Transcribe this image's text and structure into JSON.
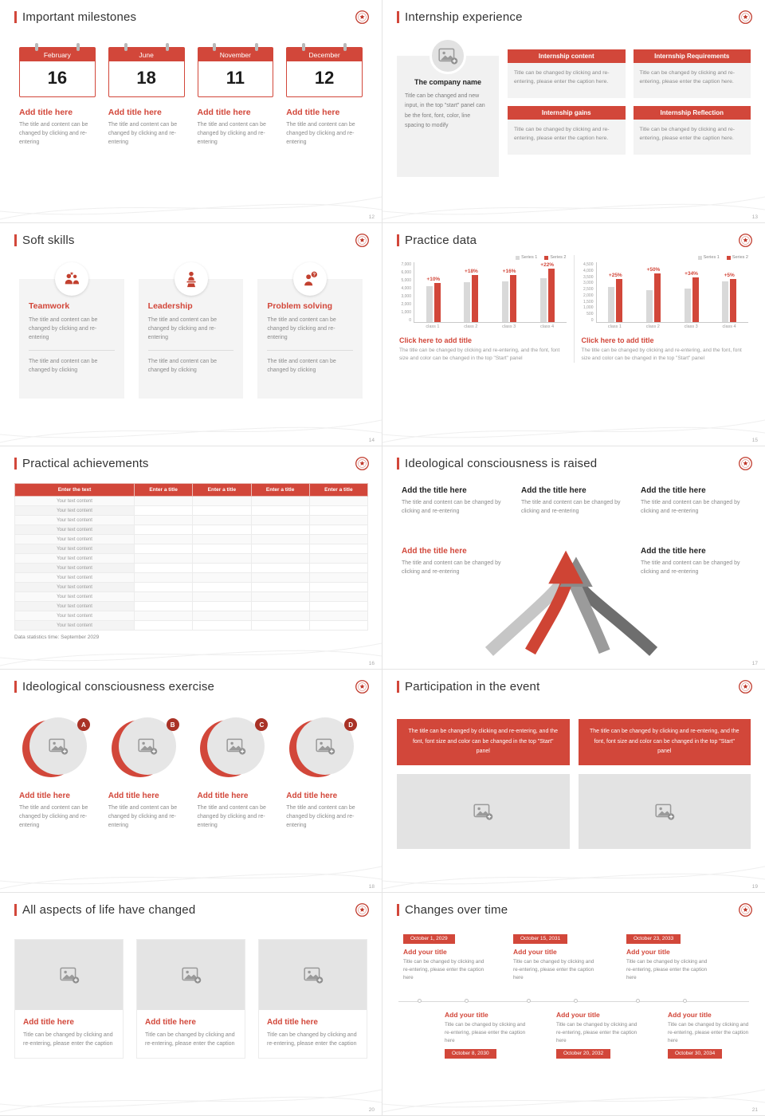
{
  "accent_color": "#d2473a",
  "slides": [
    {
      "title": "Important milestones",
      "page_no": "12",
      "calendars": [
        {
          "month": "February",
          "day": "16",
          "item_title": "Add title here",
          "caption": "The title and content can be changed by clicking and re-entering"
        },
        {
          "month": "June",
          "day": "18",
          "item_title": "Add title here",
          "caption": "The title and content can be changed by clicking and re-entering"
        },
        {
          "month": "November",
          "day": "11",
          "item_title": "Add title here",
          "caption": "The title and content can be changed by clicking and re-entering"
        },
        {
          "month": "December",
          "day": "12",
          "item_title": "Add title here",
          "caption": "The title and content can be changed by clicking and re-entering"
        }
      ]
    },
    {
      "title": "Internship experience",
      "page_no": "13",
      "company_card": {
        "name": "The company name",
        "caption": "Title can be changed and new input, in the top \"start\" panel can be the font, font, color, line spacing to modify"
      },
      "info_boxes": [
        {
          "title": "Internship content",
          "caption": "Title can be changed by clicking and re-entering, please enter the caption here."
        },
        {
          "title": "Internship Requirements",
          "caption": "Title can be changed by clicking and re-entering, please enter the caption here."
        },
        {
          "title": "Internship gains",
          "caption": "Title can be changed by clicking and re-entering, please enter the caption here."
        },
        {
          "title": "Internship Reflection",
          "caption": "Title can be changed by clicking and re-entering, please enter the caption here."
        }
      ]
    },
    {
      "title": "Soft skills",
      "page_no": "14",
      "skill_cards": [
        {
          "title": "Teamwork",
          "text_top": "The title and content can be changed by clicking and re-entering",
          "text_bottom": "The title and content can be changed by clicking"
        },
        {
          "title": "Leadership",
          "text_top": "The title and content can be changed by clicking and re-entering",
          "text_bottom": "The title and content can be changed by clicking"
        },
        {
          "title": "Problem solving",
          "text_top": "The title and content can be changed by clicking and re-entering",
          "text_bottom": "The title and content can be changed by clicking"
        }
      ]
    },
    {
      "title": "Practice data",
      "page_no": "15",
      "chart_blocks": [
        {
          "footer_title": "Click here to add title",
          "footer_caption": "The title can be changed by clicking and re-entering, and the font, font size and color can be changed in the top \"Start\" panel"
        },
        {
          "footer_title": "Click here to add title",
          "footer_caption": "The title can be changed by clicking and re-entering, and the font, font size and color can be changed in the top \"Start\" panel"
        }
      ]
    },
    {
      "title": "Practical achievements",
      "page_no": "16",
      "table": {
        "headers": [
          "Enter the text",
          "Enter a title",
          "Enter a title",
          "Enter a title",
          "Enter a title"
        ],
        "rows": [
          "Your text content",
          "Your text content",
          "Your text content",
          "Your text content",
          "Your text content",
          "Your text content",
          "Your text content",
          "Your text content",
          "Your text content",
          "Your text content",
          "Your text content",
          "Your text content",
          "Your text content",
          "Your text content"
        ],
        "footnote": "Data statistics time: September 2029"
      }
    },
    {
      "title": "Ideological consciousness is raised",
      "page_no": "17",
      "blocks": [
        {
          "title": "Add the title here",
          "caption": "The title and content can be changed by clicking and re-entering"
        },
        {
          "title": "Add the title here",
          "caption": "The title and content can be changed by clicking and re-entering"
        },
        {
          "title": "Add the title here",
          "caption": "The title and content can be changed by clicking and re-entering"
        },
        {
          "title": "Add the title here",
          "caption": "The title and content can be changed by clicking and re-entering"
        },
        {
          "title": "Add the title here",
          "caption": "The title and content can be changed by clicking and re-entering"
        }
      ]
    },
    {
      "title": "Ideological consciousness exercise",
      "page_no": "18",
      "items": [
        {
          "badge": "A",
          "title": "Add title here",
          "caption": "The title and content can be changed by clicking and re-entering"
        },
        {
          "badge": "B",
          "title": "Add title here",
          "caption": "The title and content can be changed by clicking and re-entering"
        },
        {
          "badge": "C",
          "title": "Add title here",
          "caption": "The title and content can be changed by clicking and re-entering"
        },
        {
          "badge": "D",
          "title": "Add title here",
          "caption": "The title and content can be changed by clicking and re-entering"
        }
      ]
    },
    {
      "title": "Participation in the event",
      "page_no": "19",
      "text_boxes": [
        {
          "caption": "The title can be changed by clicking and re-entering, and the font, font size and color can be changed in the top \"Start\" panel"
        },
        {
          "caption": "The title can be changed by clicking and re-entering, and the font, font size and color can be changed in the top \"Start\" panel"
        }
      ]
    },
    {
      "title": "All aspects of life have changed",
      "page_no": "20",
      "cards": [
        {
          "title": "Add title here",
          "caption": "Title can be changed by clicking and re-entering, please enter the caption"
        },
        {
          "title": "Add title here",
          "caption": "Title can be changed by clicking and re-entering, please enter the caption"
        },
        {
          "title": "Add title here",
          "caption": "Title can be changed by clicking and re-entering, please enter the caption"
        }
      ]
    },
    {
      "title": "Changes over time",
      "page_no": "21",
      "timeline_top": [
        {
          "date": "October 1, 2029",
          "title": "Add your title",
          "caption": "Title can be changed by clicking and re-entering, please enter the caption here"
        },
        {
          "date": "October 15, 2031",
          "title": "Add your title",
          "caption": "Title can be changed by clicking and re-entering, please enter the caption here"
        },
        {
          "date": "October 23, 2033",
          "title": "Add your title",
          "caption": "Title can be changed by clicking and re-entering, please enter the caption here"
        }
      ],
      "timeline_bottom": [
        {
          "date": "October 8, 2030",
          "title": "Add your title",
          "caption": "Title can be changed by clicking and re-entering, please enter the caption here"
        },
        {
          "date": "October 20, 2032",
          "title": "Add your title",
          "caption": "Title can be changed by clicking and re-entering, please enter the caption here"
        },
        {
          "date": "October 30, 2034",
          "title": "Add your title",
          "caption": "Title can be changed by clicking and re-entering, please enter the caption here"
        }
      ]
    }
  ],
  "chart_data": [
    {
      "type": "bar",
      "title": "Practice data — left chart",
      "categories": [
        "class 1",
        "class 2",
        "class 3",
        "class 4"
      ],
      "series": [
        {
          "name": "Series 1",
          "color": "#d9d9d9",
          "values": [
            4500,
            5000,
            5100,
            5500
          ]
        },
        {
          "name": "Series 2",
          "color": "#d2473a",
          "values": [
            4950,
            5900,
            5950,
            6700
          ]
        }
      ],
      "growth_labels": [
        "+10%",
        "+18%",
        "+16%",
        "+22%"
      ],
      "xlabel": "",
      "ylabel": "",
      "ylim": [
        0,
        7000
      ],
      "yticks": [
        "7,000",
        "6,000",
        "5,000",
        "4,000",
        "3,000",
        "2,000",
        "1,000",
        "0"
      ],
      "legend_position": "top-right",
      "grid": false
    },
    {
      "type": "bar",
      "title": "Practice data — right chart",
      "categories": [
        "class 1",
        "class 2",
        "class 3",
        "class 4"
      ],
      "series": [
        {
          "name": "Series 1",
          "color": "#d9d9d9",
          "values": [
            2800,
            2600,
            2700,
            3300
          ]
        },
        {
          "name": "Series 2",
          "color": "#d2473a",
          "values": [
            3500,
            3900,
            3600,
            3450
          ]
        }
      ],
      "growth_labels": [
        "+25%",
        "+50%",
        "+34%",
        "+5%"
      ],
      "xlabel": "",
      "ylabel": "",
      "ylim": [
        0,
        4500
      ],
      "yticks": [
        "4,500",
        "4,000",
        "3,500",
        "3,000",
        "2,500",
        "2,000",
        "1,500",
        "1,000",
        "500",
        "0"
      ],
      "legend_position": "top-right",
      "grid": false
    }
  ]
}
